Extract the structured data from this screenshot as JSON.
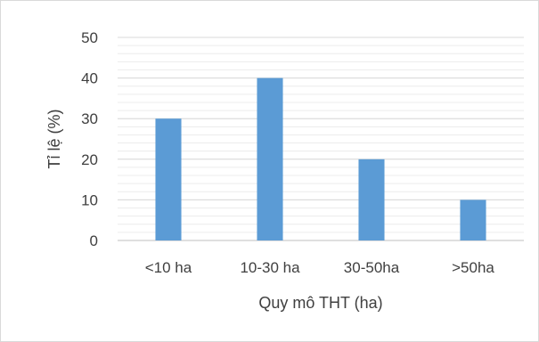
{
  "chart_data": {
    "type": "bar",
    "categories": [
      "<10 ha",
      "10-30 ha",
      "30-50ha",
      ">50ha"
    ],
    "values": [
      30,
      40,
      20,
      10
    ],
    "title": "",
    "xlabel": "Quy mô THT (ha)",
    "ylabel": "Tỉ lệ  (%)",
    "ylim": [
      0,
      50
    ],
    "yticks": [
      0,
      10,
      20,
      30,
      40,
      50
    ],
    "grid": true,
    "minor_grid": true,
    "bar_color": "#5b9bd5",
    "gridline_color": "#d9d9d9",
    "axis_color": "#bfbfbf",
    "text_color": "#404040"
  }
}
